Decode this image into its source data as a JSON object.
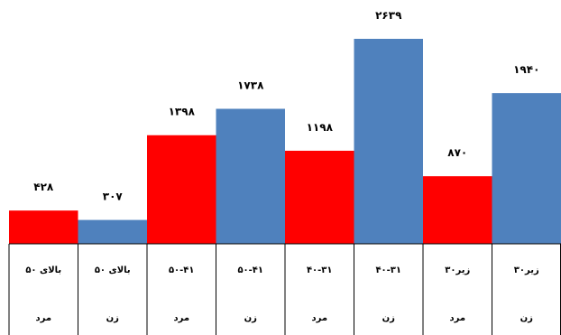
{
  "chart_data": {
    "type": "bar",
    "categories": [
      {
        "age": "بالای ۵۰",
        "gender": "مرد"
      },
      {
        "age": "بالای ۵۰",
        "gender": "زن"
      },
      {
        "age": "۵۰-۴۱",
        "gender": "مرد"
      },
      {
        "age": "۵۰-۴۱",
        "gender": "زن"
      },
      {
        "age": "۴۰-۳۱",
        "gender": "مرد"
      },
      {
        "age": "۴۰-۳۱",
        "gender": "زن"
      },
      {
        "age": "زیر۳۰",
        "gender": "مرد"
      },
      {
        "age": "زیر۳۰",
        "gender": "زن"
      }
    ],
    "values": [
      428,
      307,
      1398,
      1738,
      1198,
      2639,
      870,
      1940
    ],
    "value_labels": [
      "۴۲۸",
      "۳۰۷",
      "۱۳۹۸",
      "۱۷۳۸",
      "۱۱۹۸",
      "۲۶۳۹",
      "۸۷۰",
      "۱۹۴۰"
    ],
    "colors": [
      "#ff0000",
      "#4f81bd",
      "#ff0000",
      "#4f81bd",
      "#ff0000",
      "#4f81bd",
      "#ff0000",
      "#4f81bd"
    ],
    "title": "",
    "xlabel": "",
    "ylabel": "",
    "ylim": [
      0,
      2639
    ],
    "grid": false,
    "legend": "none"
  }
}
